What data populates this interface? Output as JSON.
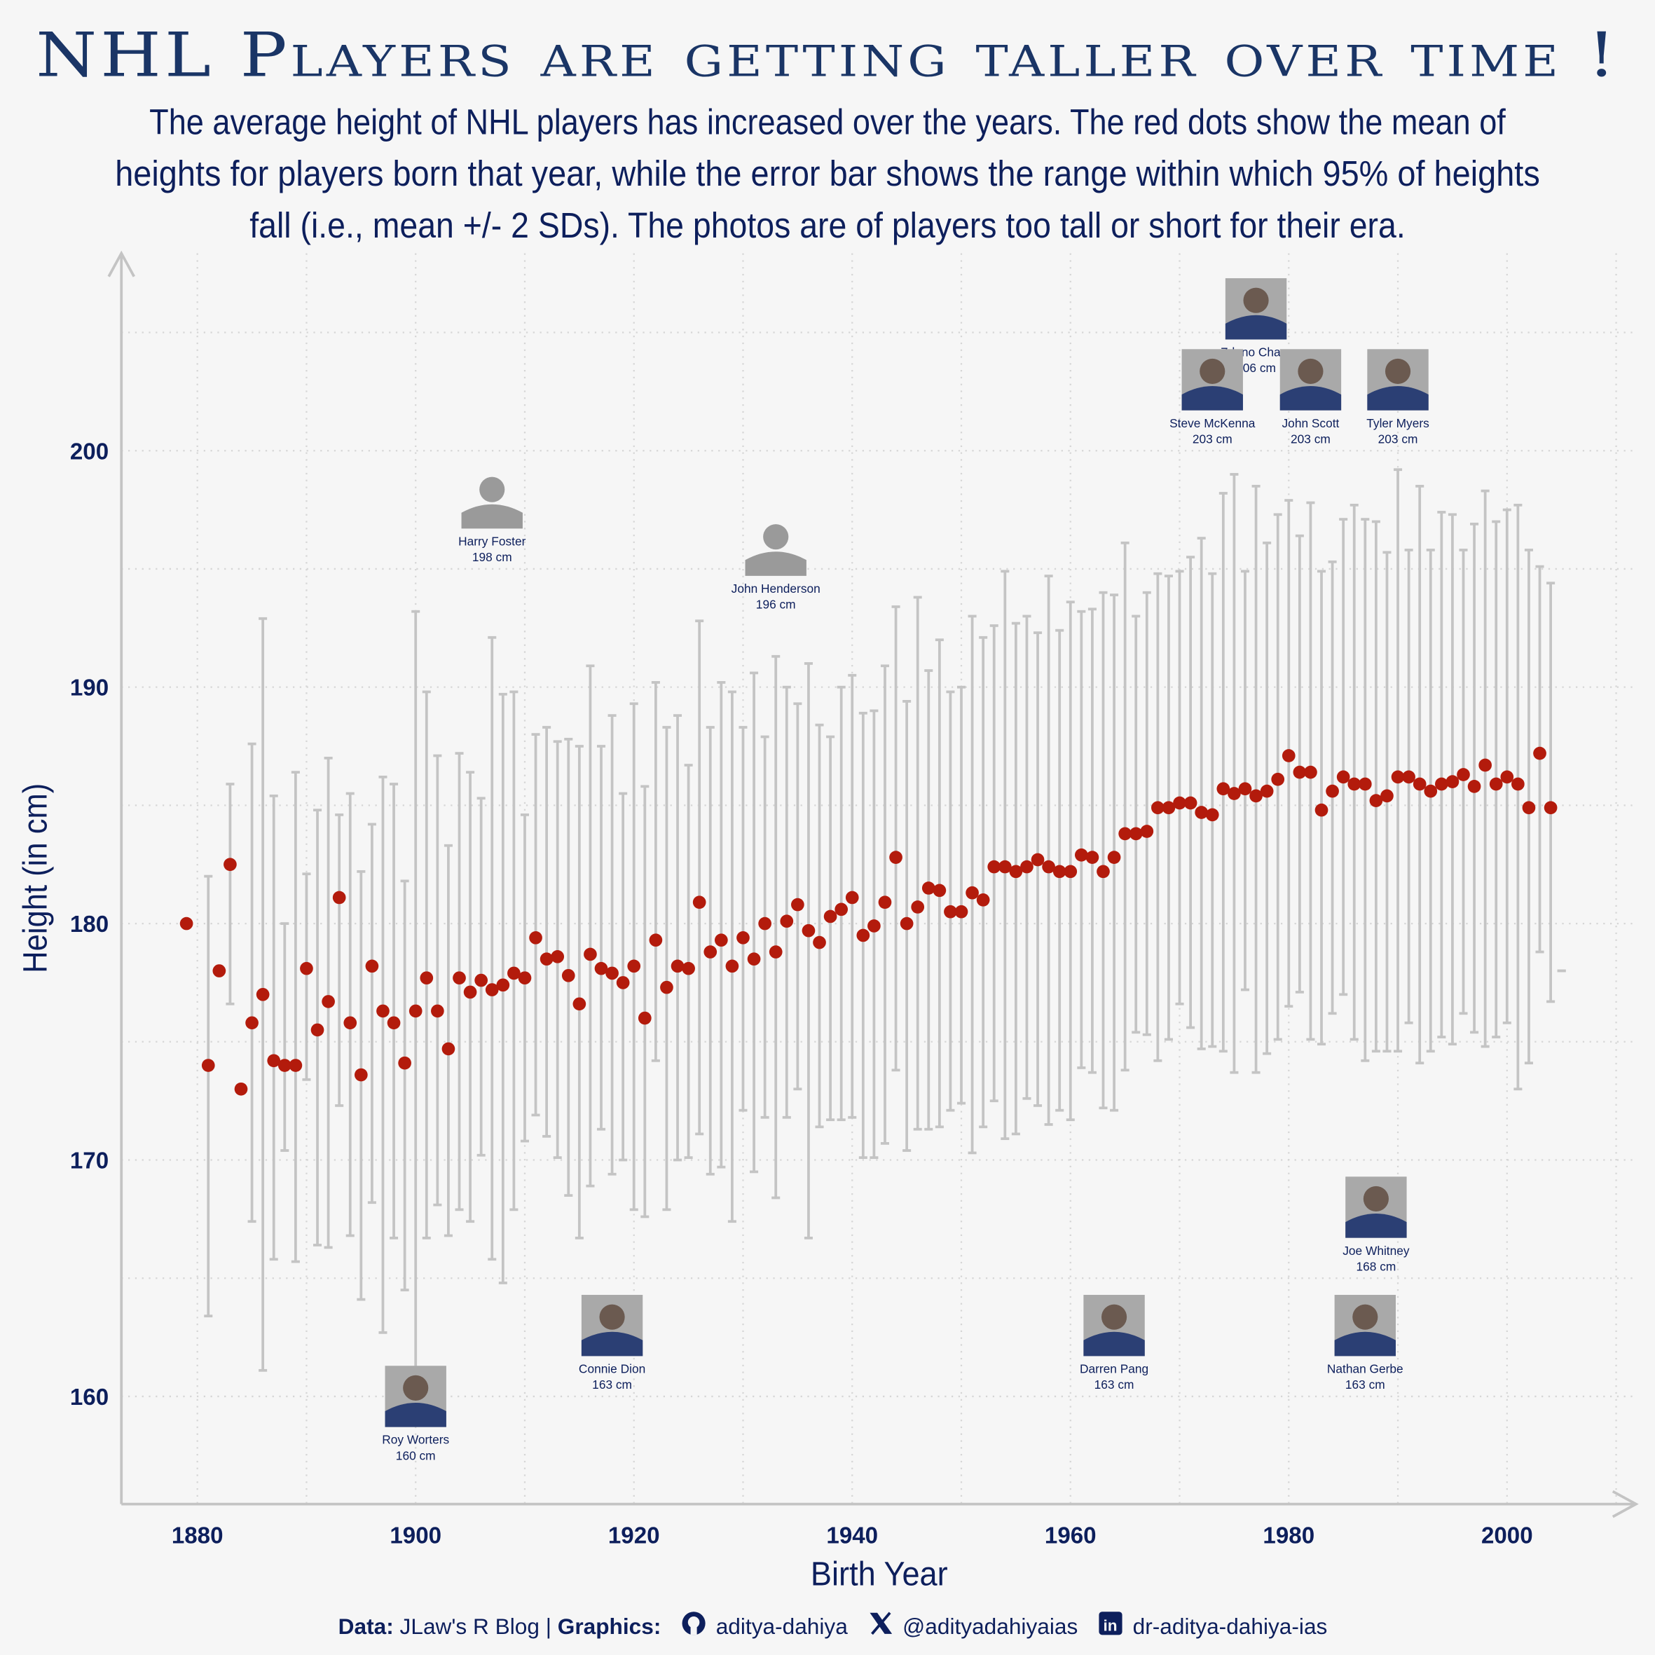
{
  "title": "NHL Players are getting taller over time !",
  "subtitle_lines": [
    "The average height of NHL players has increased over the years. The red dots show the mean of",
    "heights for players born that year, while the error bar shows the range within which 95% of heights",
    "fall (i.e., mean +/- 2 SDs). The photos are of players too tall or short for their era."
  ],
  "footer": {
    "data_label": "Data:",
    "data_source": "JLaw's R Blog |",
    "graphics_label": "Graphics:",
    "github_icon": "github-icon",
    "github": "aditya-dahiya",
    "x_icon": "x-twitter-icon",
    "twitter": "@adityadahiyaias",
    "linkedin_icon": "linkedin-icon",
    "linkedin": "dr-aditya-dahiya-ias"
  },
  "chart_data": {
    "type": "scatter",
    "title": "NHL Players are getting taller over time !",
    "xlabel": "Birth Year",
    "ylabel": "Height (in cm)",
    "xlim": [
      1873,
      2012
    ],
    "ylim": [
      155.5,
      208
    ],
    "xticks": [
      1880,
      1900,
      1920,
      1940,
      1960,
      1980,
      2000
    ],
    "yticks": [
      160,
      170,
      180,
      190,
      200
    ],
    "grid": true,
    "colors": {
      "point": "#b31b0c",
      "errorbar": "#c4c4c4",
      "axis": "#c4c4c4",
      "text": "#0d1f5c"
    },
    "points": [
      {
        "year": 1879,
        "mean": 180.0
      },
      {
        "year": 1881,
        "mean": 174.0,
        "lo": 163.4,
        "hi": 182.0
      },
      {
        "year": 1882,
        "mean": 178.0
      },
      {
        "year": 1883,
        "mean": 182.5,
        "lo": 176.6,
        "hi": 185.9
      },
      {
        "year": 1884,
        "mean": 173.0
      },
      {
        "year": 1885,
        "mean": 175.8,
        "lo": 167.4,
        "hi": 187.6
      },
      {
        "year": 1886,
        "mean": 177.0,
        "lo": 161.1,
        "hi": 192.9
      },
      {
        "year": 1887,
        "mean": 174.2,
        "lo": 165.8,
        "hi": 185.4
      },
      {
        "year": 1888,
        "mean": 174.0,
        "lo": 170.4,
        "hi": 180.0
      },
      {
        "year": 1889,
        "mean": 174.0,
        "lo": 165.7,
        "hi": 186.4
      },
      {
        "year": 1890,
        "mean": 178.1,
        "lo": 173.4,
        "hi": 182.1
      },
      {
        "year": 1891,
        "mean": 175.5,
        "lo": 166.4,
        "hi": 184.8
      },
      {
        "year": 1892,
        "mean": 176.7,
        "lo": 166.3,
        "hi": 187.0
      },
      {
        "year": 1893,
        "mean": 181.1,
        "lo": 172.3,
        "hi": 184.6
      },
      {
        "year": 1894,
        "mean": 175.8,
        "lo": 166.8,
        "hi": 185.5
      },
      {
        "year": 1895,
        "mean": 173.6,
        "lo": 164.1,
        "hi": 182.2
      },
      {
        "year": 1896,
        "mean": 178.2,
        "lo": 168.2,
        "hi": 184.2
      },
      {
        "year": 1897,
        "mean": 176.3,
        "lo": 162.7,
        "hi": 186.2
      },
      {
        "year": 1898,
        "mean": 175.8,
        "lo": 166.7,
        "hi": 185.9
      },
      {
        "year": 1899,
        "mean": 174.1,
        "lo": 164.5,
        "hi": 181.8
      },
      {
        "year": 1900,
        "mean": 176.3,
        "lo": 160.6,
        "hi": 193.2
      },
      {
        "year": 1901,
        "mean": 177.7,
        "lo": 166.7,
        "hi": 189.8
      },
      {
        "year": 1902,
        "mean": 176.3,
        "lo": 168.1,
        "hi": 187.1
      },
      {
        "year": 1903,
        "mean": 174.7,
        "lo": 166.8,
        "hi": 183.3
      },
      {
        "year": 1904,
        "mean": 177.7,
        "lo": 167.9,
        "hi": 187.2
      },
      {
        "year": 1905,
        "mean": 177.1,
        "lo": 167.4,
        "hi": 186.4
      },
      {
        "year": 1906,
        "mean": 177.6,
        "lo": 170.2,
        "hi": 185.3
      },
      {
        "year": 1907,
        "mean": 177.2,
        "lo": 165.8,
        "hi": 192.1
      },
      {
        "year": 1908,
        "mean": 177.4,
        "lo": 164.8,
        "hi": 189.7
      },
      {
        "year": 1909,
        "mean": 177.9,
        "lo": 167.9,
        "hi": 189.8
      },
      {
        "year": 1910,
        "mean": 177.7,
        "lo": 170.8,
        "hi": 184.6
      },
      {
        "year": 1911,
        "mean": 179.4,
        "lo": 171.9,
        "hi": 188.0
      },
      {
        "year": 1912,
        "mean": 178.5,
        "lo": 171.0,
        "hi": 188.3
      },
      {
        "year": 1913,
        "mean": 178.6,
        "lo": 170.1,
        "hi": 187.7
      },
      {
        "year": 1914,
        "mean": 177.8,
        "lo": 168.5,
        "hi": 187.8
      },
      {
        "year": 1915,
        "mean": 176.6,
        "lo": 166.7,
        "hi": 187.5
      },
      {
        "year": 1916,
        "mean": 178.7,
        "lo": 168.9,
        "hi": 190.9
      },
      {
        "year": 1917,
        "mean": 178.1,
        "lo": 171.3,
        "hi": 187.5
      },
      {
        "year": 1918,
        "mean": 177.9,
        "lo": 169.4,
        "hi": 188.8
      },
      {
        "year": 1919,
        "mean": 177.5,
        "lo": 170.0,
        "hi": 185.5
      },
      {
        "year": 1920,
        "mean": 178.2,
        "lo": 167.9,
        "hi": 189.3
      },
      {
        "year": 1921,
        "mean": 176.0,
        "lo": 167.6,
        "hi": 185.8
      },
      {
        "year": 1922,
        "mean": 179.3,
        "lo": 174.2,
        "hi": 190.2
      },
      {
        "year": 1923,
        "mean": 177.3,
        "lo": 167.9,
        "hi": 188.3
      },
      {
        "year": 1924,
        "mean": 178.2,
        "lo": 170.0,
        "hi": 188.8
      },
      {
        "year": 1925,
        "mean": 178.1,
        "lo": 170.1,
        "hi": 186.7
      },
      {
        "year": 1926,
        "mean": 180.9,
        "lo": 171.1,
        "hi": 192.8
      },
      {
        "year": 1927,
        "mean": 178.8,
        "lo": 169.4,
        "hi": 188.3
      },
      {
        "year": 1928,
        "mean": 179.3,
        "lo": 169.7,
        "hi": 190.2
      },
      {
        "year": 1929,
        "mean": 178.2,
        "lo": 167.4,
        "hi": 189.8
      },
      {
        "year": 1930,
        "mean": 179.4,
        "lo": 172.1,
        "hi": 188.3
      },
      {
        "year": 1931,
        "mean": 178.5,
        "lo": 169.5,
        "hi": 190.6
      },
      {
        "year": 1932,
        "mean": 180.0,
        "lo": 171.8,
        "hi": 187.9
      },
      {
        "year": 1933,
        "mean": 178.8,
        "lo": 168.4,
        "hi": 191.3
      },
      {
        "year": 1934,
        "mean": 180.1,
        "lo": 171.8,
        "hi": 190.0
      },
      {
        "year": 1935,
        "mean": 180.8,
        "lo": 173.0,
        "hi": 189.3
      },
      {
        "year": 1936,
        "mean": 179.7,
        "lo": 166.7,
        "hi": 191.0
      },
      {
        "year": 1937,
        "mean": 179.2,
        "lo": 171.4,
        "hi": 188.4
      },
      {
        "year": 1938,
        "mean": 180.3,
        "lo": 171.7,
        "hi": 187.9
      },
      {
        "year": 1939,
        "mean": 180.6,
        "lo": 171.7,
        "hi": 190.0
      },
      {
        "year": 1940,
        "mean": 181.1,
        "lo": 171.8,
        "hi": 190.5
      },
      {
        "year": 1941,
        "mean": 179.5,
        "lo": 170.1,
        "hi": 188.9
      },
      {
        "year": 1942,
        "mean": 179.9,
        "lo": 170.1,
        "hi": 189.0
      },
      {
        "year": 1943,
        "mean": 180.9,
        "lo": 170.7,
        "hi": 190.9
      },
      {
        "year": 1944,
        "mean": 182.8,
        "lo": 173.8,
        "hi": 193.4
      },
      {
        "year": 1945,
        "mean": 180.0,
        "lo": 170.4,
        "hi": 189.4
      },
      {
        "year": 1946,
        "mean": 180.7,
        "lo": 171.3,
        "hi": 193.8
      },
      {
        "year": 1947,
        "mean": 181.5,
        "lo": 171.3,
        "hi": 190.7
      },
      {
        "year": 1948,
        "mean": 181.4,
        "lo": 171.4,
        "hi": 192.0
      },
      {
        "year": 1949,
        "mean": 180.5,
        "lo": 172.1,
        "hi": 189.8
      },
      {
        "year": 1950,
        "mean": 180.5,
        "lo": 172.4,
        "hi": 190.0
      },
      {
        "year": 1951,
        "mean": 181.3,
        "lo": 170.3,
        "hi": 193.0
      },
      {
        "year": 1952,
        "mean": 181.0,
        "lo": 171.4,
        "hi": 192.1
      },
      {
        "year": 1953,
        "mean": 182.4,
        "lo": 172.5,
        "hi": 192.6
      },
      {
        "year": 1954,
        "mean": 182.4,
        "lo": 170.9,
        "hi": 194.9
      },
      {
        "year": 1955,
        "mean": 182.2,
        "lo": 171.1,
        "hi": 192.7
      },
      {
        "year": 1956,
        "mean": 182.4,
        "lo": 172.6,
        "hi": 193.0
      },
      {
        "year": 1957,
        "mean": 182.7,
        "lo": 172.3,
        "hi": 192.3
      },
      {
        "year": 1958,
        "mean": 182.4,
        "lo": 171.5,
        "hi": 194.7
      },
      {
        "year": 1959,
        "mean": 182.2,
        "lo": 172.1,
        "hi": 192.4
      },
      {
        "year": 1960,
        "mean": 182.2,
        "lo": 171.7,
        "hi": 193.6
      },
      {
        "year": 1961,
        "mean": 182.9,
        "lo": 173.9,
        "hi": 193.2
      },
      {
        "year": 1962,
        "mean": 182.8,
        "lo": 173.7,
        "hi": 193.3
      },
      {
        "year": 1963,
        "mean": 182.2,
        "lo": 172.2,
        "hi": 194.0
      },
      {
        "year": 1964,
        "mean": 182.8,
        "lo": 172.1,
        "hi": 193.9
      },
      {
        "year": 1965,
        "mean": 183.8,
        "lo": 173.8,
        "hi": 196.1
      },
      {
        "year": 1966,
        "mean": 183.8,
        "lo": 175.4,
        "hi": 193.0
      },
      {
        "year": 1967,
        "mean": 183.9,
        "lo": 175.3,
        "hi": 194.0
      },
      {
        "year": 1968,
        "mean": 184.9,
        "lo": 174.2,
        "hi": 194.8
      },
      {
        "year": 1969,
        "mean": 184.9,
        "lo": 175.1,
        "hi": 194.7
      },
      {
        "year": 1970,
        "mean": 185.1,
        "lo": 176.6,
        "hi": 194.9
      },
      {
        "year": 1971,
        "mean": 185.1,
        "lo": 175.6,
        "hi": 195.5
      },
      {
        "year": 1972,
        "mean": 184.7,
        "lo": 174.7,
        "hi": 196.3
      },
      {
        "year": 1973,
        "mean": 184.6,
        "lo": 174.8,
        "hi": 194.8
      },
      {
        "year": 1974,
        "mean": 185.7,
        "lo": 174.6,
        "hi": 198.2
      },
      {
        "year": 1975,
        "mean": 185.5,
        "lo": 173.7,
        "hi": 199.0
      },
      {
        "year": 1976,
        "mean": 185.7,
        "lo": 177.2,
        "hi": 194.9
      },
      {
        "year": 1977,
        "mean": 185.4,
        "lo": 173.7,
        "hi": 198.5
      },
      {
        "year": 1978,
        "mean": 185.6,
        "lo": 174.5,
        "hi": 196.1
      },
      {
        "year": 1979,
        "mean": 186.1,
        "lo": 175.1,
        "hi": 197.3
      },
      {
        "year": 1980,
        "mean": 187.1,
        "lo": 176.5,
        "hi": 197.9
      },
      {
        "year": 1981,
        "mean": 186.4,
        "lo": 177.1,
        "hi": 196.4
      },
      {
        "year": 1982,
        "mean": 186.4,
        "lo": 175.1,
        "hi": 197.8
      },
      {
        "year": 1983,
        "mean": 184.8,
        "lo": 174.9,
        "hi": 194.9
      },
      {
        "year": 1984,
        "mean": 185.6,
        "lo": 176.2,
        "hi": 195.3
      },
      {
        "year": 1985,
        "mean": 186.2,
        "lo": 177.0,
        "hi": 197.1
      },
      {
        "year": 1986,
        "mean": 185.9,
        "lo": 175.1,
        "hi": 197.7
      },
      {
        "year": 1987,
        "mean": 185.9,
        "lo": 174.2,
        "hi": 197.1
      },
      {
        "year": 1988,
        "mean": 185.2,
        "lo": 174.6,
        "hi": 197.0
      },
      {
        "year": 1989,
        "mean": 185.4,
        "lo": 174.6,
        "hi": 195.7
      },
      {
        "year": 1990,
        "mean": 186.2,
        "lo": 174.6,
        "hi": 199.2
      },
      {
        "year": 1991,
        "mean": 186.2,
        "lo": 175.8,
        "hi": 195.8
      },
      {
        "year": 1992,
        "mean": 185.9,
        "lo": 174.1,
        "hi": 198.5
      },
      {
        "year": 1993,
        "mean": 185.6,
        "lo": 174.6,
        "hi": 195.8
      },
      {
        "year": 1994,
        "mean": 185.9,
        "lo": 175.2,
        "hi": 197.4
      },
      {
        "year": 1995,
        "mean": 186.0,
        "lo": 174.9,
        "hi": 197.3
      },
      {
        "year": 1996,
        "mean": 186.3,
        "lo": 176.2,
        "hi": 195.8
      },
      {
        "year": 1997,
        "mean": 185.8,
        "lo": 175.4,
        "hi": 196.9
      },
      {
        "year": 1998,
        "mean": 186.7,
        "lo": 174.8,
        "hi": 198.3
      },
      {
        "year": 1999,
        "mean": 185.9,
        "lo": 175.2,
        "hi": 197.0
      },
      {
        "year": 2000,
        "mean": 186.2,
        "lo": 175.8,
        "hi": 197.5
      },
      {
        "year": 2001,
        "mean": 185.9,
        "lo": 173.0,
        "hi": 197.7
      },
      {
        "year": 2002,
        "mean": 184.9,
        "lo": 174.1,
        "hi": 195.8
      },
      {
        "year": 2003,
        "mean": 187.2,
        "lo": 178.8,
        "hi": 195.1
      },
      {
        "year": 2004,
        "mean": 184.9,
        "lo": 176.7,
        "hi": 194.4
      },
      {
        "year": 2005,
        "lo": 178.0,
        "hi": 178.0
      }
    ],
    "annotations": [
      {
        "name": "Zdeno Chara",
        "height": "206 cm",
        "year": 1977,
        "cm": 206,
        "photo": "photo"
      },
      {
        "name": "Steve McKenna",
        "height": "203 cm",
        "year": 1973,
        "cm": 203,
        "photo": "photo"
      },
      {
        "name": "John Scott",
        "height": "203 cm",
        "year": 1982,
        "cm": 203,
        "photo": "photo"
      },
      {
        "name": "Tyler Myers",
        "height": "203 cm",
        "year": 1990,
        "cm": 203,
        "photo": "photo"
      },
      {
        "name": "Harry Foster",
        "height": "198 cm",
        "year": 1907,
        "cm": 198,
        "photo": "silhouette"
      },
      {
        "name": "John Henderson",
        "height": "196 cm",
        "year": 1933,
        "cm": 196,
        "photo": "goalie-silhouette"
      },
      {
        "name": "Joe Whitney",
        "height": "168 cm",
        "year": 1988,
        "cm": 168,
        "photo": "photo"
      },
      {
        "name": "Connie Dion",
        "height": "163 cm",
        "year": 1918,
        "cm": 163,
        "photo": "photo"
      },
      {
        "name": "Darren Pang",
        "height": "163 cm",
        "year": 1964,
        "cm": 163,
        "photo": "photo"
      },
      {
        "name": "Nathan Gerbe",
        "height": "163 cm",
        "year": 1987,
        "cm": 163,
        "photo": "photo"
      },
      {
        "name": "Roy Worters",
        "height": "160 cm",
        "year": 1900,
        "cm": 160,
        "photo": "photo"
      }
    ]
  }
}
